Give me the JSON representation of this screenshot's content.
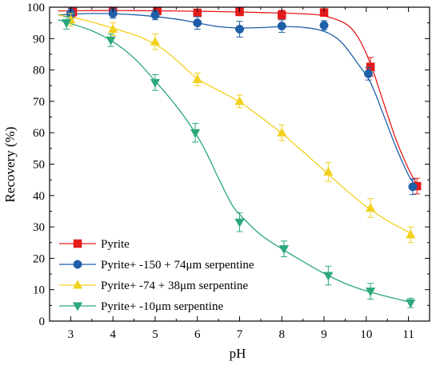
{
  "chart_data": {
    "type": "line",
    "title": "",
    "xlabel": "pH",
    "ylabel": "Recovery (%)",
    "xlim": [
      2.5,
      11.5
    ],
    "ylim": [
      0,
      100
    ],
    "x_ticks": [
      3,
      4,
      5,
      6,
      7,
      8,
      9,
      10,
      11
    ],
    "y_ticks": [
      0,
      10,
      20,
      30,
      40,
      50,
      60,
      70,
      80,
      90,
      100
    ],
    "legend_position": "bottom-left",
    "grid": false,
    "error_bars": true,
    "series": [
      {
        "name": "Pyrite",
        "color": "#e41a1c",
        "marker": "square",
        "points": [
          {
            "x": 3.05,
            "y": 98.5,
            "err": 1.5
          },
          {
            "x": 4.0,
            "y": 98.8,
            "err": 1.0
          },
          {
            "x": 5.05,
            "y": 98.8,
            "err": 1.0
          },
          {
            "x": 6.0,
            "y": 98.2,
            "err": 1.0
          },
          {
            "x": 7.0,
            "y": 98.5,
            "err": 1.2
          },
          {
            "x": 8.0,
            "y": 97.5,
            "err": 1.5
          },
          {
            "x": 9.0,
            "y": 98.3,
            "err": 1.2
          },
          {
            "x": 10.1,
            "y": 81.0,
            "err": 3.0
          },
          {
            "x": 11.2,
            "y": 43.0,
            "err": 2.5
          }
        ],
        "curve": [
          [
            2.7,
            98.8
          ],
          [
            3.5,
            98.9
          ],
          [
            4.5,
            98.9
          ],
          [
            5.5,
            98.8
          ],
          [
            6.5,
            98.6
          ],
          [
            7.5,
            98.3
          ],
          [
            8.5,
            97.9
          ],
          [
            9.0,
            97.2
          ],
          [
            9.5,
            94.8
          ],
          [
            9.8,
            90.5
          ],
          [
            10.1,
            82.0
          ],
          [
            10.4,
            70.0
          ],
          [
            10.7,
            58.0
          ],
          [
            11.0,
            48.5
          ],
          [
            11.2,
            43.5
          ]
        ]
      },
      {
        "name": "Pyrite+ -150 + 74μm serpentine",
        "color": "#1f5fa8",
        "marker": "circle",
        "points": [
          {
            "x": 3.0,
            "y": 98.0,
            "err": 1.5
          },
          {
            "x": 4.0,
            "y": 98.0,
            "err": 1.5
          },
          {
            "x": 5.0,
            "y": 97.5,
            "err": 1.5
          },
          {
            "x": 6.0,
            "y": 95.0,
            "err": 2.0
          },
          {
            "x": 7.0,
            "y": 93.0,
            "err": 2.5
          },
          {
            "x": 8.0,
            "y": 94.0,
            "err": 2.0
          },
          {
            "x": 9.0,
            "y": 94.2,
            "err": 1.5
          },
          {
            "x": 10.05,
            "y": 78.8,
            "err": 2.0
          },
          {
            "x": 11.1,
            "y": 42.8,
            "err": 2.5
          }
        ],
        "curve": [
          [
            2.7,
            97.5
          ],
          [
            3.5,
            98.0
          ],
          [
            4.5,
            97.6
          ],
          [
            5.5,
            96.2
          ],
          [
            6.0,
            95.0
          ],
          [
            6.5,
            93.8
          ],
          [
            7.0,
            93.4
          ],
          [
            7.5,
            93.5
          ],
          [
            8.0,
            93.8
          ],
          [
            8.5,
            93.6
          ],
          [
            9.0,
            92.3
          ],
          [
            9.4,
            89.0
          ],
          [
            9.8,
            82.0
          ],
          [
            10.1,
            76.0
          ],
          [
            10.4,
            66.0
          ],
          [
            10.7,
            55.5
          ],
          [
            11.0,
            46.5
          ],
          [
            11.1,
            44.5
          ]
        ]
      },
      {
        "name": "Pyrite+ -74 + 38μm serpentine",
        "color": "#f2d01e",
        "marker": "triangle-up",
        "points": [
          {
            "x": 3.0,
            "y": 96.0,
            "err": 2.0
          },
          {
            "x": 4.0,
            "y": 93.0,
            "err": 2.0
          },
          {
            "x": 5.0,
            "y": 89.0,
            "err": 2.5
          },
          {
            "x": 6.0,
            "y": 77.0,
            "err": 2.0
          },
          {
            "x": 7.0,
            "y": 70.0,
            "err": 2.0
          },
          {
            "x": 8.0,
            "y": 60.0,
            "err": 2.5
          },
          {
            "x": 9.1,
            "y": 47.5,
            "err": 3.0
          },
          {
            "x": 10.1,
            "y": 36.0,
            "err": 3.0
          },
          {
            "x": 11.05,
            "y": 27.5,
            "err": 2.5
          }
        ],
        "curve": [
          [
            2.7,
            97.5
          ],
          [
            3.2,
            96.3
          ],
          [
            3.7,
            94.5
          ],
          [
            4.2,
            92.5
          ],
          [
            4.7,
            90.2
          ],
          [
            5.2,
            86.5
          ],
          [
            5.6,
            82.0
          ],
          [
            6.0,
            77.2
          ],
          [
            6.5,
            73.5
          ],
          [
            7.0,
            69.8
          ],
          [
            7.5,
            65.0
          ],
          [
            8.0,
            59.8
          ],
          [
            8.5,
            54.0
          ],
          [
            9.0,
            48.0
          ],
          [
            9.5,
            42.0
          ],
          [
            10.0,
            36.5
          ],
          [
            10.5,
            32.0
          ],
          [
            11.05,
            28.0
          ]
        ]
      },
      {
        "name": "Pyrite+ -10μm serpentine",
        "color": "#2ca87a",
        "marker": "triangle-down",
        "points": [
          {
            "x": 2.9,
            "y": 95.0,
            "err": 2.0
          },
          {
            "x": 3.95,
            "y": 89.5,
            "err": 2.0
          },
          {
            "x": 5.0,
            "y": 76.0,
            "err": 2.5
          },
          {
            "x": 5.95,
            "y": 60.0,
            "err": 3.0
          },
          {
            "x": 7.0,
            "y": 31.5,
            "err": 3.0
          },
          {
            "x": 8.05,
            "y": 23.0,
            "err": 2.5
          },
          {
            "x": 9.1,
            "y": 14.5,
            "err": 3.0
          },
          {
            "x": 10.1,
            "y": 9.5,
            "err": 2.5
          },
          {
            "x": 11.05,
            "y": 5.8,
            "err": 1.5
          }
        ],
        "curve": [
          [
            2.7,
            96.0
          ],
          [
            3.0,
            94.8
          ],
          [
            3.5,
            92.5
          ],
          [
            4.0,
            89.0
          ],
          [
            4.5,
            83.8
          ],
          [
            5.0,
            76.5
          ],
          [
            5.5,
            68.5
          ],
          [
            5.9,
            61.0
          ],
          [
            6.2,
            54.0
          ],
          [
            6.5,
            45.5
          ],
          [
            6.8,
            37.5
          ],
          [
            7.0,
            34.0
          ],
          [
            7.5,
            27.5
          ],
          [
            8.0,
            23.0
          ],
          [
            8.5,
            19.0
          ],
          [
            9.0,
            15.2
          ],
          [
            9.5,
            12.0
          ],
          [
            10.0,
            9.6
          ],
          [
            10.5,
            7.8
          ],
          [
            11.05,
            6.0
          ]
        ]
      }
    ]
  }
}
